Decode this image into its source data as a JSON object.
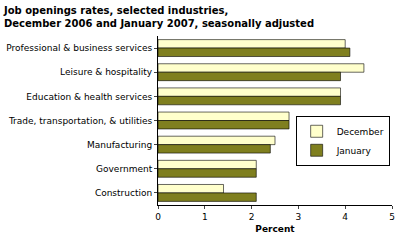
{
  "chart_data": {
    "type": "bar",
    "orientation": "horizontal",
    "title": "Job openings rates, selected industries,\nDecember 2006 and January 2007, seasonally adjusted",
    "x_label": "Percent",
    "categories": [
      "Professional & business services",
      "Leisure & hospitality",
      "Education & health services",
      "Trade, transportation, & utilities",
      "Manufacturing",
      "Government",
      "Construction"
    ],
    "series": [
      {
        "name": "December",
        "color": "#ffffcc",
        "values": [
          4.0,
          4.4,
          3.9,
          2.8,
          2.5,
          2.1,
          1.4
        ]
      },
      {
        "name": "January",
        "color": "#7f7f1f",
        "values": [
          4.1,
          3.9,
          3.9,
          2.8,
          2.4,
          2.1,
          2.1
        ]
      }
    ],
    "xlim": [
      0,
      5
    ],
    "xticks": [
      0,
      1,
      2,
      3,
      4,
      5
    ],
    "grid": false,
    "legend": "right"
  }
}
